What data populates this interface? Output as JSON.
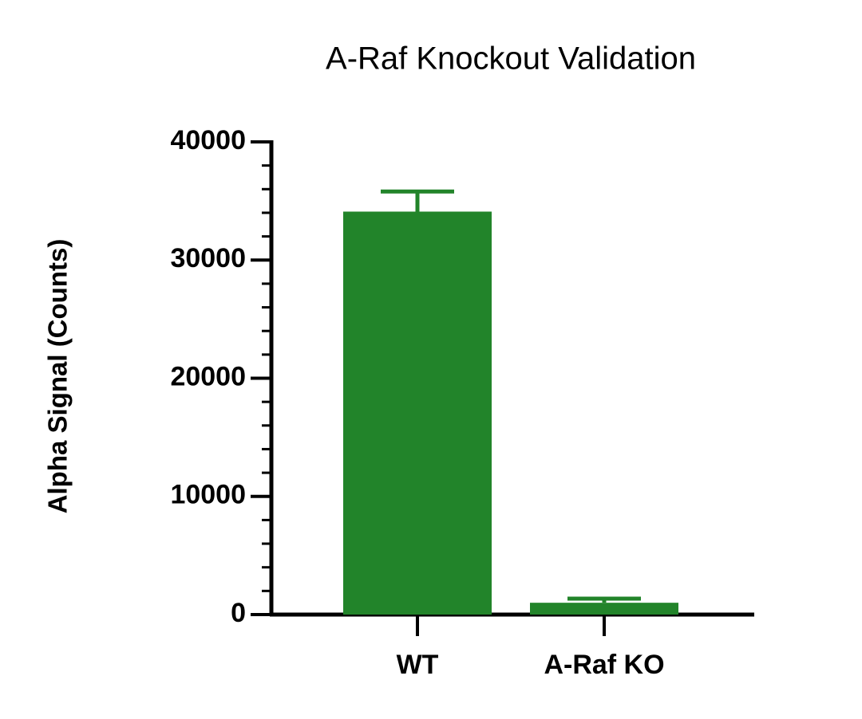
{
  "chart_data": {
    "type": "bar",
    "title": "A-Raf Knockout Validation",
    "y_label": "Alpha Signal (Counts)",
    "categories": [
      "WT",
      "A-Raf KO"
    ],
    "values": [
      34100,
      1000
    ],
    "errors": [
      1700,
      350
    ],
    "color": "#22842a",
    "ylim": [
      0,
      40000
    ],
    "yticks": [
      0,
      10000,
      20000,
      30000,
      40000
    ],
    "minor_yticks": [
      2000,
      4000,
      6000,
      8000,
      12000,
      14000,
      16000,
      18000,
      22000,
      24000,
      26000,
      28000,
      32000,
      34000,
      36000,
      38000
    ],
    "grid": false
  }
}
